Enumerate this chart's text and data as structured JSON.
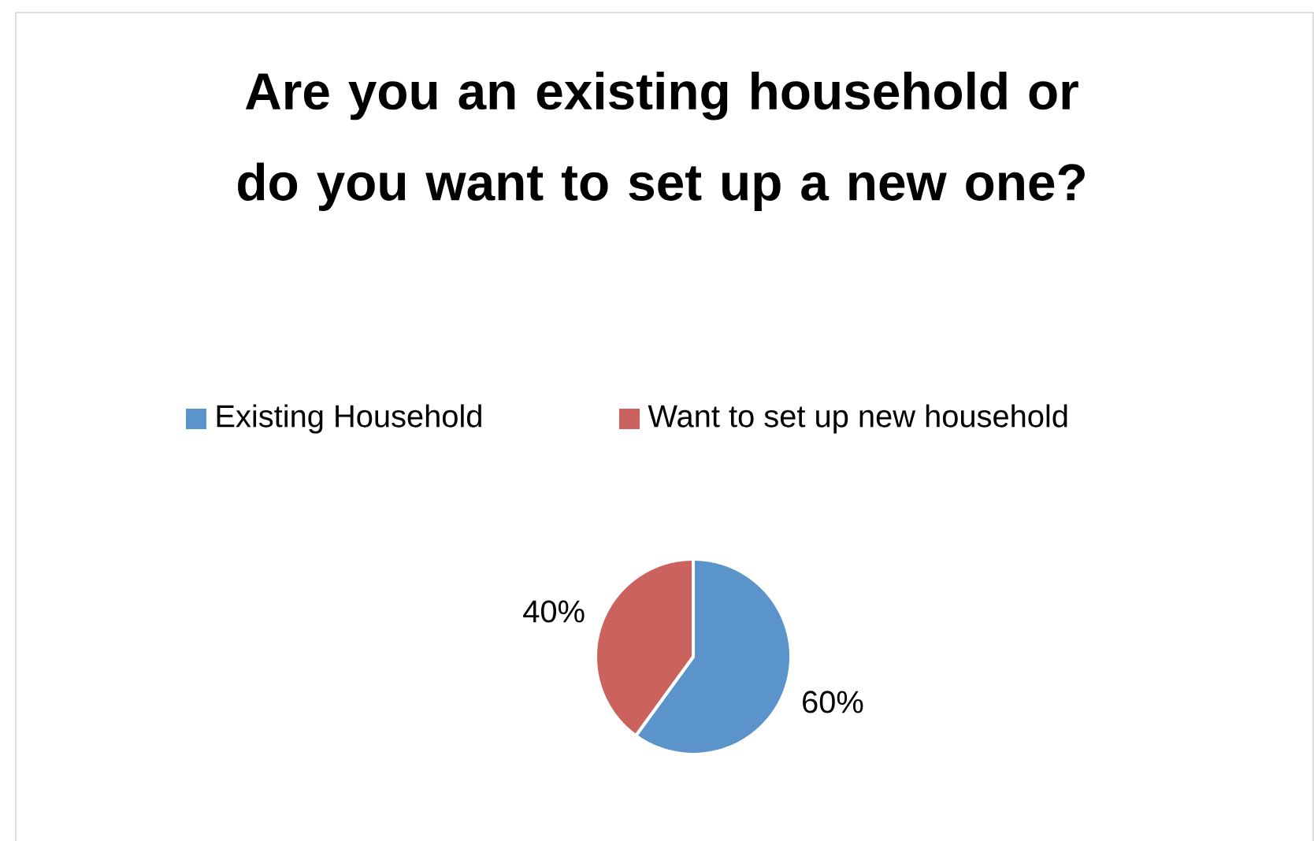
{
  "chart_data": {
    "type": "pie",
    "title": "Are you an existing household or do you want to set up a new one?",
    "categories": [
      "Existing Household",
      "Want to set up new household"
    ],
    "values": [
      60,
      40
    ],
    "colors": [
      "#5b93cb",
      "#cc625e"
    ],
    "value_labels": [
      "60%",
      "40%"
    ],
    "legend": "top"
  }
}
